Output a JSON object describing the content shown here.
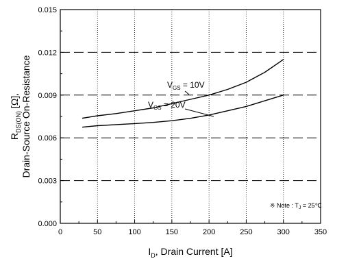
{
  "chart_data": {
    "type": "line",
    "xlabel": {
      "main": "I",
      "sub": "D",
      "rest": ", Drain Current [A]"
    },
    "ylabel": {
      "line1_main": "R",
      "line1_sub": "DS(ON)",
      "line1_rest": " [Ω],",
      "line2": "Drain-Source On-Resistance"
    },
    "xlim": [
      0,
      350
    ],
    "ylim": [
      0,
      0.015
    ],
    "xticks": [
      0,
      50,
      100,
      150,
      200,
      250,
      300,
      350
    ],
    "xtick_labels": [
      "0",
      "50",
      "100",
      "150",
      "200",
      "250",
      "300",
      "350"
    ],
    "yticks": [
      0,
      0.003,
      0.006,
      0.009,
      0.012,
      0.015
    ],
    "ytick_labels": [
      "0.000",
      "0.003",
      "0.006",
      "0.009",
      "0.012",
      "0.015"
    ],
    "grid": {
      "x": "dotted",
      "y": "dashed"
    },
    "series": [
      {
        "label_main": "V",
        "label_sub": "GS",
        "label_rest": " = 10V",
        "x": [
          30,
          50,
          75,
          100,
          125,
          150,
          175,
          200,
          225,
          250,
          275,
          300
        ],
        "y": [
          0.00738,
          0.00755,
          0.0077,
          0.0079,
          0.0081,
          0.0084,
          0.0087,
          0.009,
          0.0094,
          0.0099,
          0.0106,
          0.0115
        ]
      },
      {
        "label_main": "V",
        "label_sub": "GS",
        "label_rest": " = 20V",
        "x": [
          30,
          50,
          75,
          100,
          125,
          150,
          175,
          200,
          225,
          250,
          275,
          300
        ],
        "y": [
          0.00675,
          0.00685,
          0.00693,
          0.007,
          0.00708,
          0.0072,
          0.00737,
          0.0076,
          0.0079,
          0.0082,
          0.0086,
          0.009
        ]
      }
    ],
    "annotation": {
      "symbol": "※",
      "text_pre": " Note : T",
      "text_sub": "J",
      "text_post": " = 25℃"
    }
  }
}
